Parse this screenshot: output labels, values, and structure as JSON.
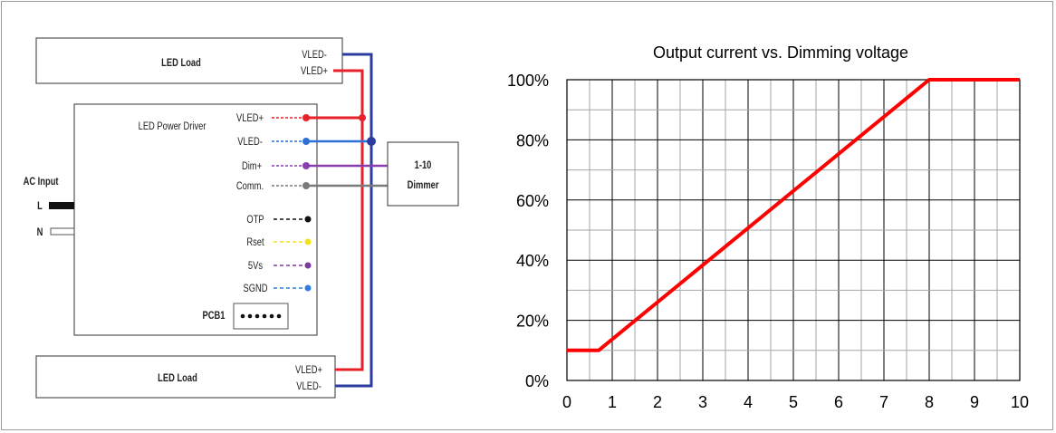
{
  "wiring": {
    "top_load_label": "LED Load",
    "bottom_load_label": "LED Load",
    "top_load_pins": [
      "VLED-",
      "VLED+"
    ],
    "bottom_load_pins": [
      "VLED+",
      "VLED-"
    ],
    "driver_label": "LED Power Driver",
    "driver_pins": [
      "VLED+",
      "VLED-",
      "Dim+",
      "Comm."
    ],
    "aux_pins": [
      "OTP",
      "Rset",
      "5Vs",
      "SGND"
    ],
    "pcb_label": "PCB1",
    "ac_input_label": "AC Input",
    "ac_L": "L",
    "ac_N": "N",
    "dimmer_line1": "1-10",
    "dimmer_line2": "Dimmer",
    "colors": {
      "vled_plus": "#e8202a",
      "vled_minus": "#2f6fd8",
      "dim_plus": "#8a3fb0",
      "comm": "#7a7a7a",
      "otp": "#111111",
      "rset": "#f2e21a",
      "fivevs": "#7a3aa0",
      "sgnd": "#2f7fe0",
      "bus_red": "#e8202a",
      "bus_blue": "#2b3b9e"
    }
  },
  "chart_data": {
    "type": "line",
    "title": "Output current vs. Dimming voltage",
    "xlabel": "",
    "ylabel": "",
    "x_ticks": [
      "0",
      "1",
      "2",
      "3",
      "4",
      "5",
      "6",
      "7",
      "8",
      "9",
      "10"
    ],
    "y_ticks": [
      "0%",
      "20%",
      "40%",
      "60%",
      "80%",
      "100%"
    ],
    "xlim": [
      0,
      10
    ],
    "ylim": [
      0,
      100
    ],
    "grid": true,
    "series": [
      {
        "x": [
          0,
          0.7,
          8,
          10
        ],
        "y": [
          10,
          10,
          100,
          100
        ],
        "color": "#ff0000"
      }
    ]
  }
}
